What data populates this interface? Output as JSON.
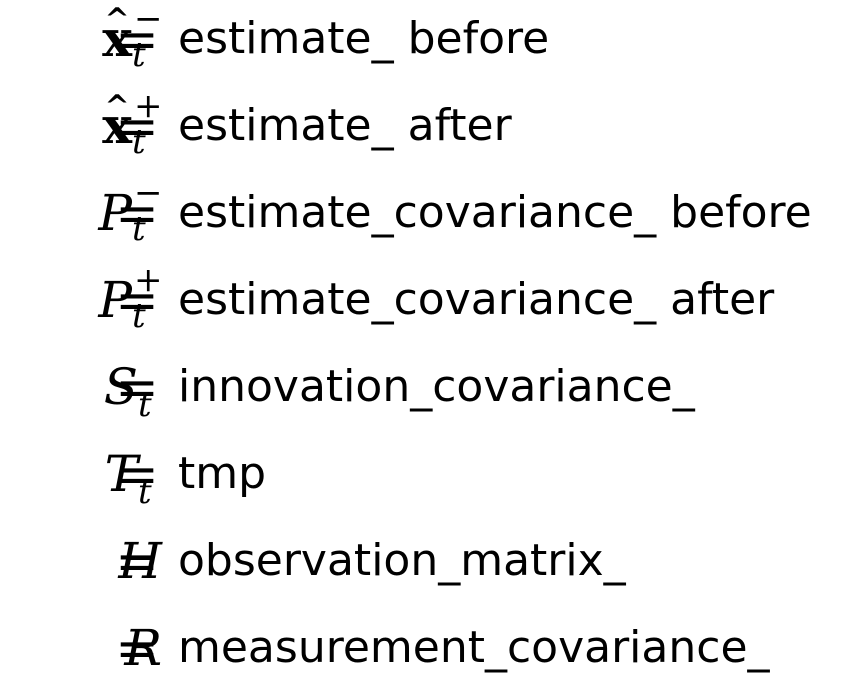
{
  "equations": [
    {
      "symbol": "x",
      "hat": "^",
      "superscript": "−",
      "subscript": "t",
      "equals": "=",
      "value": "estimate_ before"
    },
    {
      "symbol": "x",
      "hat": "^",
      "superscript": "+",
      "subscript": "t",
      "equals": "=",
      "value": "estimate_ after"
    },
    {
      "symbol": "P",
      "superscript": "−",
      "subscript": "t",
      "equals": "=",
      "value": "estimate_covariance_ before"
    },
    {
      "symbol": "P",
      "superscript": "+",
      "subscript": "t",
      "equals": "=",
      "value": "estimate_covariance_ after"
    },
    {
      "symbol": "S",
      "subscript": "t",
      "equals": "=",
      "value": "innovation_covariance_"
    },
    {
      "symbol": "T",
      "subscript": "t",
      "equals": "=",
      "value": "tmp"
    },
    {
      "symbol": "H",
      "equals": "=",
      "value": "observation_matrix_"
    },
    {
      "symbol": "R",
      "equals": "=",
      "value": "measurement_covariance_"
    }
  ]
}
